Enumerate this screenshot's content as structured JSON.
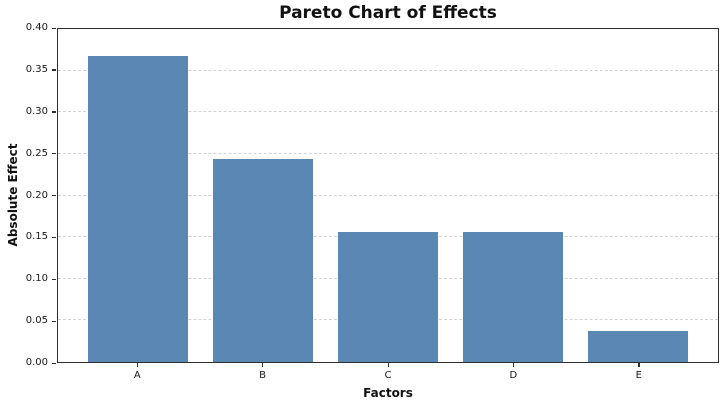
{
  "chart_data": {
    "type": "bar",
    "title": "Pareto Chart of Effects",
    "xlabel": "Factors",
    "ylabel": "Absolute Effect",
    "categories": [
      "A",
      "B",
      "C",
      "D",
      "E"
    ],
    "values": [
      0.368,
      0.244,
      0.156,
      0.156,
      0.037
    ],
    "ylim": [
      0,
      0.4
    ],
    "ytick_labels": [
      "0.00",
      "0.05",
      "0.10",
      "0.15",
      "0.20",
      "0.25",
      "0.30",
      "0.35",
      "0.40"
    ],
    "bar_color": "#5b87b5",
    "grid": "horizontal-dashed",
    "grid_color": "#d4d4d4",
    "legend": "none",
    "bar_width_fraction": 0.8
  }
}
